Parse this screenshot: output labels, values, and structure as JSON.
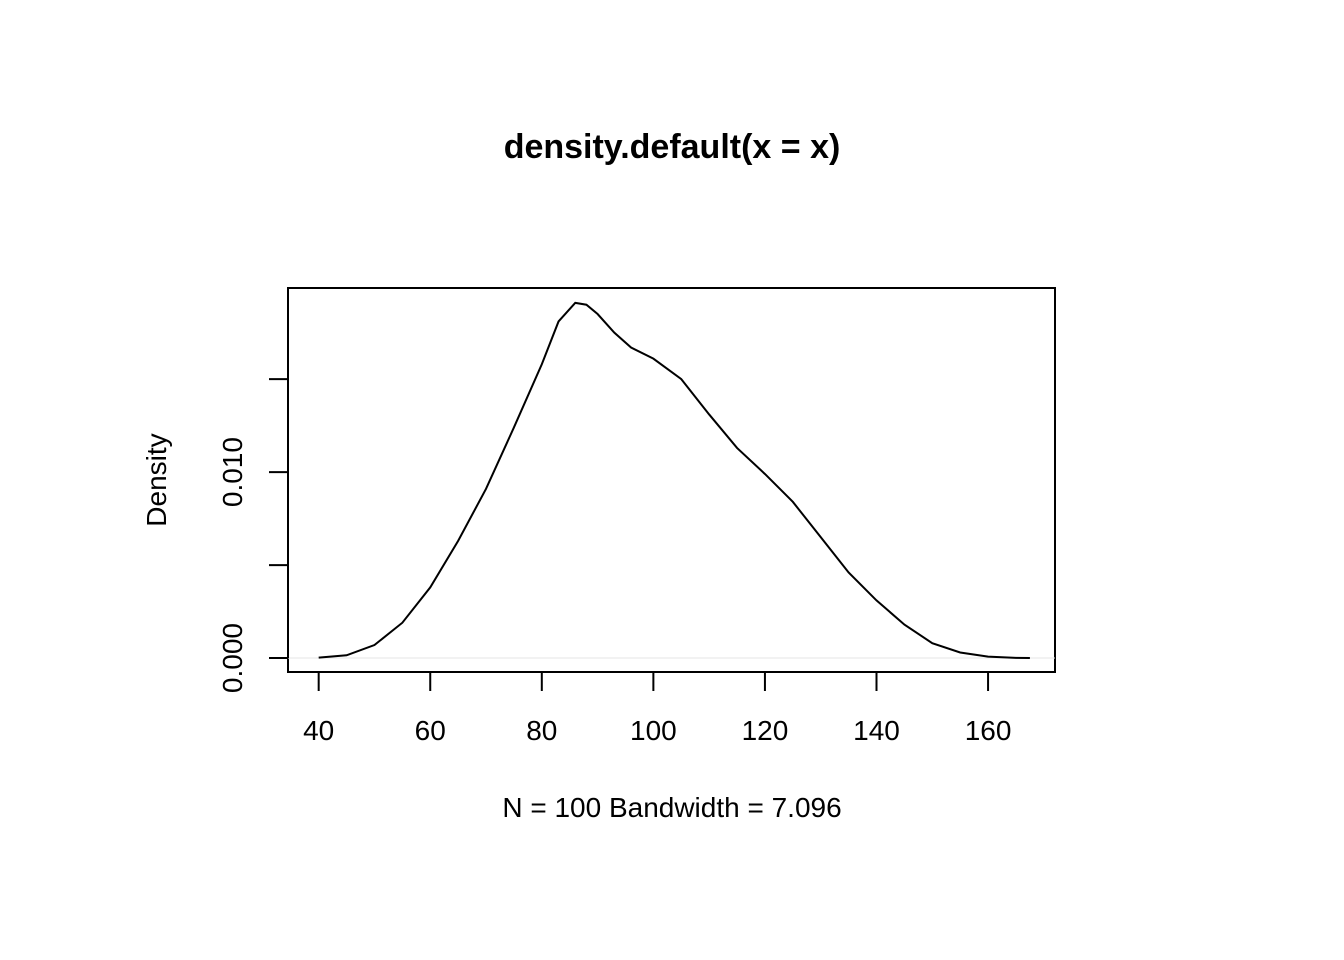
{
  "chart_data": {
    "type": "line",
    "title": "density.default(x = x)",
    "xlabel": "N = 100   Bandwidth = 7.096",
    "ylabel": "Density",
    "xlim": [
      34.5,
      172
    ],
    "ylim": [
      -0.00075,
      0.0199
    ],
    "x_ticks": [
      40,
      60,
      80,
      100,
      120,
      140,
      160
    ],
    "x_tick_labels": [
      "40",
      "60",
      "80",
      "100",
      "120",
      "140",
      "160"
    ],
    "y_ticks": [
      0,
      0.005,
      0.01,
      0.015
    ],
    "y_tick_labels": [
      "0.000",
      "",
      "0.010",
      ""
    ],
    "grid": false,
    "legend": "none",
    "series": [
      {
        "x": [
          40,
          45,
          50,
          55,
          60,
          65,
          70,
          75,
          80,
          83,
          86,
          88,
          90,
          93,
          96,
          100,
          105,
          110,
          115,
          120,
          125,
          130,
          135,
          140,
          145,
          150,
          155,
          160,
          165,
          167.5
        ],
        "y": [
          2e-05,
          0.00015,
          0.0007,
          0.0019,
          0.0038,
          0.0063,
          0.0091,
          0.0124,
          0.0158,
          0.0181,
          0.0191,
          0.019,
          0.0185,
          0.0175,
          0.0167,
          0.0161,
          0.015,
          0.0131,
          0.0113,
          0.0099,
          0.0084,
          0.0065,
          0.0046,
          0.0031,
          0.0018,
          0.0008,
          0.0003,
          8e-05,
          1e-05,
          0.0
        ]
      }
    ]
  }
}
